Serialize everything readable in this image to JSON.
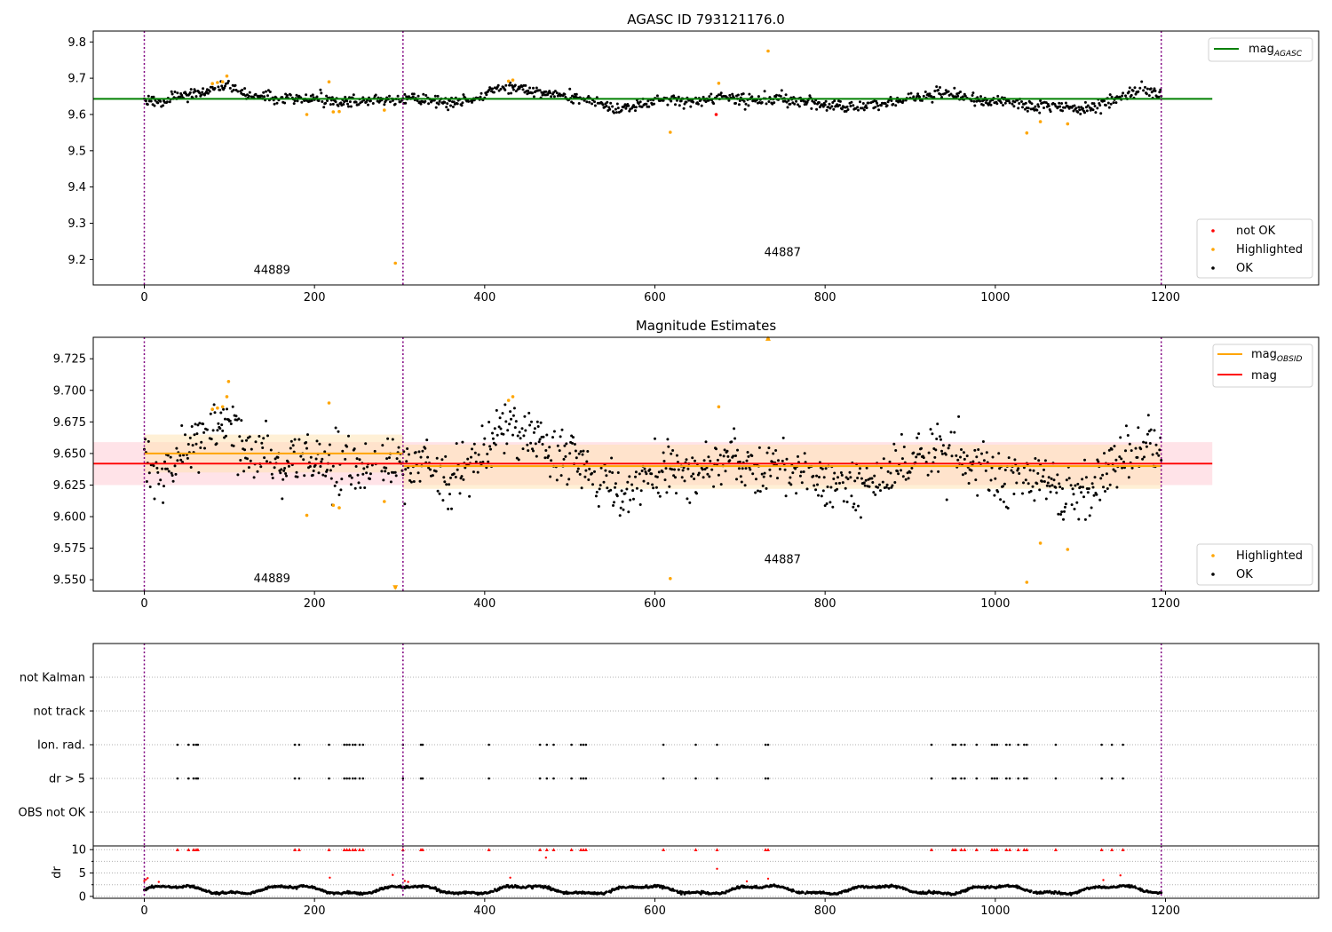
{
  "colors": {
    "ok": "#000000",
    "highlighted": "#ffa500",
    "not_ok": "#ff0000",
    "mag_agasc": "#008000",
    "mag": "#ff0000",
    "mag_obsid": "#ffa500",
    "obsid_marker": "#800080",
    "band_mag": "#ffc0cb",
    "band_obsid": "#ffe4b5"
  },
  "chart_data": [
    {
      "id": "panel1",
      "type": "scatter",
      "title": "AGASC ID 793121176.0",
      "xlabel": "",
      "ylabel": "",
      "xlim": [
        -60,
        1380
      ],
      "ylim": [
        9.13,
        9.83
      ],
      "xticks": [
        0,
        200,
        400,
        600,
        800,
        1000,
        1200
      ],
      "yticks": [
        9.2,
        9.3,
        9.4,
        9.5,
        9.6,
        9.7,
        9.8
      ],
      "ytick_labels": [
        "9.2",
        "9.3",
        "9.4",
        "9.5",
        "9.6",
        "9.7",
        "9.8"
      ],
      "obsid_boundaries": [
        0,
        304,
        1195
      ],
      "obsid_labels": [
        {
          "text": "44889",
          "x": 150,
          "y": 9.16
        },
        {
          "text": "44887",
          "x": 750,
          "y": 9.21
        }
      ],
      "mag_agasc": {
        "value": 9.643,
        "x": [
          -60,
          1255
        ]
      },
      "highlighted": [
        [
          80,
          9.685
        ],
        [
          86,
          9.688
        ],
        [
          92,
          9.69
        ],
        [
          97,
          9.706
        ],
        [
          191,
          9.6
        ],
        [
          217,
          9.69
        ],
        [
          222,
          9.607
        ],
        [
          229,
          9.608
        ],
        [
          282,
          9.612
        ],
        [
          295,
          9.19
        ],
        [
          428,
          9.692
        ],
        [
          433,
          9.695
        ],
        [
          618,
          9.551
        ],
        [
          675,
          9.686
        ],
        [
          733,
          9.775
        ],
        [
          1037,
          9.549
        ],
        [
          1053,
          9.58
        ],
        [
          1085,
          9.574
        ]
      ],
      "not_ok": [
        [
          672,
          9.6
        ]
      ],
      "legend": {
        "line_labels": [
          "mag",
          "AGASC"
        ],
        "scatter_labels": [
          "not OK",
          "Highlighted",
          "OK"
        ],
        "line_position": "upper-right",
        "scatter_position": "lower-right"
      }
    },
    {
      "id": "panel2",
      "type": "scatter",
      "title": "Magnitude Estimates",
      "xlabel": "",
      "ylabel": "",
      "xlim": [
        -60,
        1380
      ],
      "ylim": [
        9.541,
        9.742
      ],
      "xticks": [
        0,
        200,
        400,
        600,
        800,
        1000,
        1200
      ],
      "yticks": [
        9.55,
        9.575,
        9.6,
        9.625,
        9.65,
        9.675,
        9.7,
        9.725
      ],
      "ytick_labels": [
        "9.550",
        "9.575",
        "9.600",
        "9.625",
        "9.650",
        "9.675",
        "9.700",
        "9.725"
      ],
      "obsid_boundaries": [
        0,
        304,
        1195
      ],
      "obsid_labels": [
        {
          "text": "44889",
          "x": 150,
          "y": 9.548
        },
        {
          "text": "44887",
          "x": 750,
          "y": 9.563
        }
      ],
      "mag": {
        "value": 9.642,
        "lo": 9.625,
        "hi": 9.659,
        "x": [
          -60,
          1255
        ]
      },
      "mag_obsid": [
        {
          "value": 9.65,
          "lo": 9.635,
          "hi": 9.665,
          "x": [
            0,
            304
          ]
        },
        {
          "value": 9.64,
          "lo": 9.622,
          "hi": 9.657,
          "x": [
            304,
            1195
          ]
        }
      ],
      "highlighted": [
        [
          80,
          9.685
        ],
        [
          86,
          9.686
        ],
        [
          92,
          9.687
        ],
        [
          97,
          9.695
        ],
        [
          99,
          9.707
        ],
        [
          191,
          9.601
        ],
        [
          217,
          9.69
        ],
        [
          222,
          9.609
        ],
        [
          229,
          9.607
        ],
        [
          282,
          9.612
        ],
        [
          295,
          9.544
        ],
        [
          428,
          9.692
        ],
        [
          433,
          9.695
        ],
        [
          618,
          9.551
        ],
        [
          675,
          9.687
        ],
        [
          733,
          9.741
        ],
        [
          1037,
          9.548
        ],
        [
          1053,
          9.579
        ],
        [
          1085,
          9.574
        ]
      ],
      "legend": {
        "line_labels": [
          "mag",
          "OBSID",
          "mag"
        ],
        "scatter_labels": [
          "Highlighted",
          "OK"
        ],
        "line_position": "upper-right",
        "scatter_position": "lower-right"
      }
    },
    {
      "id": "panel3",
      "type": "scatter",
      "title": "",
      "xlabel": "",
      "ylabel": "",
      "xlim": [
        -60,
        1380
      ],
      "categories": [
        "not Kalman",
        "not track",
        "Ion. rad.",
        "dr > 5",
        "OBS not OK"
      ],
      "obsid_boundaries": [
        0,
        304,
        1195
      ],
      "flag_x": [
        39,
        52,
        58,
        61,
        63,
        177,
        182,
        217,
        235,
        238,
        241,
        245,
        248,
        253,
        257,
        304,
        325,
        327,
        405,
        465,
        473,
        481,
        502,
        513,
        516,
        519,
        610,
        648,
        673,
        730,
        733,
        925,
        950,
        953,
        960,
        964,
        978,
        996,
        999,
        1002,
        1013,
        1017,
        1027,
        1034,
        1037,
        1071,
        1125,
        1137,
        1150
      ],
      "flag_rows": [
        "Ion. rad.",
        "dr > 5"
      ]
    },
    {
      "id": "panel4",
      "type": "scatter",
      "title": "",
      "xlabel": "",
      "ylabel": "dr",
      "xlim": [
        -60,
        1380
      ],
      "ylim": [
        -0.4,
        10.8
      ],
      "xticks": [
        0,
        200,
        400,
        600,
        800,
        1000,
        1200
      ],
      "yticks": [
        0,
        5,
        10
      ],
      "ytick_labels": [
        "0",
        "5",
        "10"
      ],
      "obsid_boundaries": [
        0,
        304,
        1195
      ],
      "dr_outliers": [
        [
          0,
          3.3
        ],
        [
          2,
          3.6
        ],
        [
          4,
          3.9
        ],
        [
          17,
          3.1
        ],
        [
          218,
          4.0
        ],
        [
          292,
          4.6
        ],
        [
          306,
          3.3
        ],
        [
          310,
          3.1
        ],
        [
          430,
          4.0
        ],
        [
          472,
          8.3
        ],
        [
          673,
          5.9
        ],
        [
          708,
          3.2
        ],
        [
          733,
          3.8
        ],
        [
          1127,
          3.5
        ],
        [
          1147,
          4.5
        ]
      ]
    }
  ]
}
